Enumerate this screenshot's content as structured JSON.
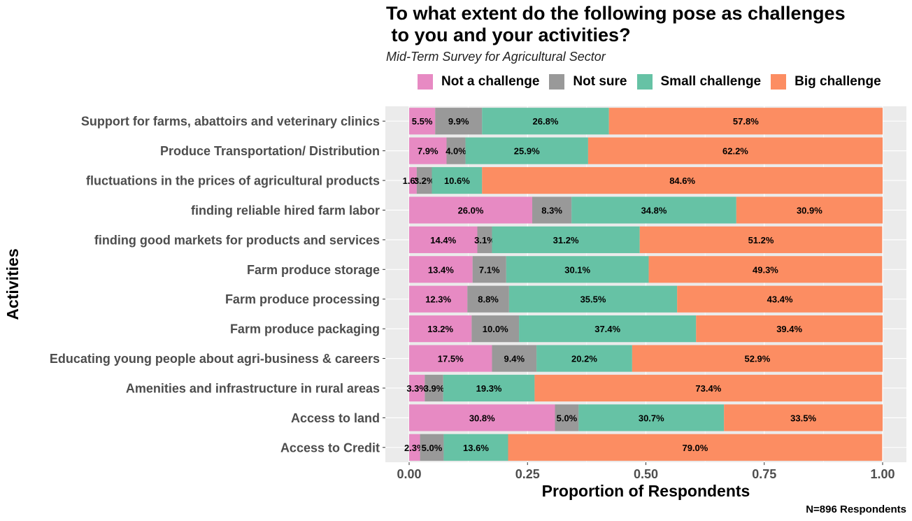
{
  "chart_data": {
    "type": "bar",
    "orientation": "horizontal",
    "stacked": true,
    "title_line1": "To what extent do the following pose as challenges",
    "title_line2": " to you and your activities?",
    "subtitle": "Mid-Term Survey for Agricultural Sector",
    "caption": "N=896 Respondents",
    "xlabel": "Proportion of Respondents",
    "ylabel": "Activities",
    "xlim": [
      0,
      1
    ],
    "xticks": [
      "0.00",
      "0.25",
      "0.50",
      "0.75",
      "1.00"
    ],
    "xtick_values": [
      0,
      0.25,
      0.5,
      0.75,
      1
    ],
    "grid": true,
    "legend_position": "top",
    "categories": [
      "Support for farms, abattoirs and veterinary clinics",
      "Produce Transportation/ Distribution",
      "fluctuations in the prices of agricultural products",
      "finding reliable hired farm labor",
      "finding good markets for products and services",
      "Farm produce storage",
      "Farm produce processing",
      "Farm produce packaging",
      "Educating young people about agri-business & careers",
      "Amenities and infrastructure in rural areas",
      "Access to land",
      "Access to Credit"
    ],
    "series": [
      {
        "name": "Not a challenge",
        "color": "#E78AC3",
        "values": [
          0.055,
          0.079,
          0.016,
          0.26,
          0.144,
          0.134,
          0.123,
          0.132,
          0.175,
          0.033,
          0.308,
          0.023
        ],
        "labels": [
          "5.5%",
          "7.9%",
          "1.6%",
          "26.0%",
          "14.4%",
          "13.4%",
          "12.3%",
          "13.2%",
          "17.5%",
          "3.3%",
          "30.8%",
          "2.3%"
        ]
      },
      {
        "name": "Not sure",
        "color": "#999999",
        "values": [
          0.099,
          0.04,
          0.032,
          0.083,
          0.031,
          0.071,
          0.088,
          0.1,
          0.094,
          0.039,
          0.05,
          0.05
        ],
        "labels": [
          "9.9%",
          "4.0%",
          "3.2%",
          "8.3%",
          "3.1%",
          "7.1%",
          "8.8%",
          "10.0%",
          "9.4%",
          "3.9%",
          "5.0%",
          "5.0%"
        ]
      },
      {
        "name": "Small challenge",
        "color": "#66C2A5",
        "values": [
          0.268,
          0.259,
          0.106,
          0.348,
          0.312,
          0.301,
          0.355,
          0.374,
          0.202,
          0.193,
          0.307,
          0.136
        ],
        "labels": [
          "26.8%",
          "25.9%",
          "10.6%",
          "34.8%",
          "31.2%",
          "30.1%",
          "35.5%",
          "37.4%",
          "20.2%",
          "19.3%",
          "30.7%",
          "13.6%"
        ]
      },
      {
        "name": "Big challenge",
        "color": "#FC8D62",
        "values": [
          0.578,
          0.622,
          0.846,
          0.309,
          0.512,
          0.493,
          0.434,
          0.394,
          0.529,
          0.734,
          0.335,
          0.79
        ],
        "labels": [
          "57.8%",
          "62.2%",
          "84.6%",
          "30.9%",
          "51.2%",
          "49.3%",
          "43.4%",
          "39.4%",
          "52.9%",
          "73.4%",
          "33.5%",
          "79.0%"
        ]
      }
    ],
    "colors": {
      "panel_background": "#EBEBEB",
      "gridline": "#FFFFFF"
    }
  }
}
